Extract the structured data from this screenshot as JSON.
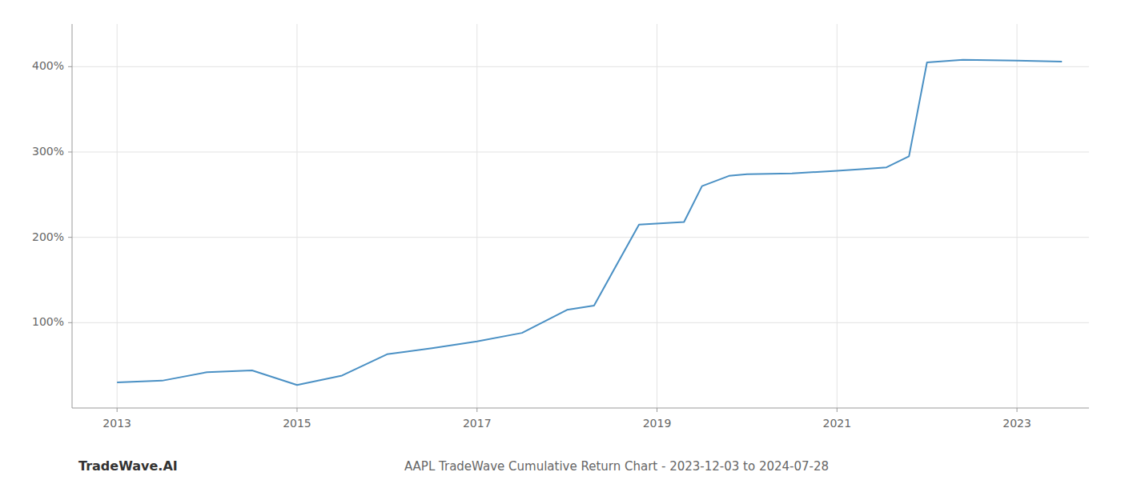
{
  "chart_data": {
    "type": "line",
    "title": "AAPL TradeWave Cumulative Return Chart - 2023-12-03 to 2024-07-28",
    "annotations": [
      "TradeWave.AI"
    ],
    "color": "#4a90c4",
    "x": [
      2013.0,
      2013.5,
      2014.0,
      2014.5,
      2015.0,
      2015.5,
      2016.0,
      2016.5,
      2017.0,
      2017.5,
      2018.0,
      2018.3,
      2018.8,
      2019.3,
      2019.5,
      2019.8,
      2020.0,
      2020.5,
      2021.0,
      2021.3,
      2021.55,
      2021.8,
      2022.0,
      2022.4,
      2023.0,
      2023.5
    ],
    "values": [
      30,
      32,
      42,
      44,
      27,
      38,
      63,
      70,
      78,
      88,
      115,
      120,
      215,
      218,
      260,
      272,
      274,
      275,
      278,
      280,
      282,
      295,
      405,
      408,
      407,
      406
    ],
    "xlim": [
      2012.5,
      2023.8
    ],
    "xticks": [
      2013,
      2015,
      2017,
      2019,
      2021,
      2023
    ],
    "ylim": [
      0,
      450
    ],
    "yticks": [
      {
        "value": 100,
        "label": "100%"
      },
      {
        "value": 200,
        "label": "200%"
      },
      {
        "value": 300,
        "label": "300%"
      },
      {
        "value": 400,
        "label": "400%"
      }
    ],
    "grid": true
  }
}
